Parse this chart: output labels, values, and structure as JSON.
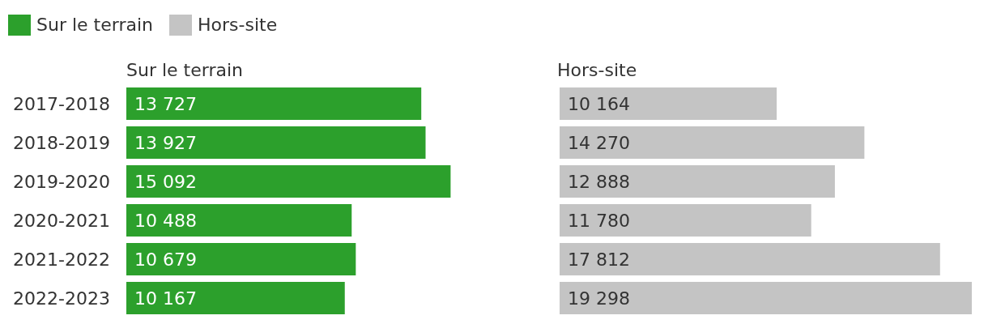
{
  "chart_data": [
    {
      "type": "bar",
      "orientation": "horizontal",
      "title": "Sur le terrain",
      "legend": "top left",
      "tick_labels": "y",
      "categories": [
        "2017-2018",
        "2018-2019",
        "2019-2020",
        "2020-2021",
        "2021-2022",
        "2022-2023"
      ],
      "series": [
        {
          "name": "Sur le terrain",
          "color": "#2ca02c",
          "values": [
            13727,
            13927,
            15092,
            10488,
            10679,
            10167
          ],
          "value_labels": [
            "13 727",
            "13 927",
            "15 092",
            "10 488",
            "10 679",
            "10 167"
          ]
        }
      ]
    },
    {
      "type": "bar",
      "orientation": "horizontal",
      "title": "Hors-site",
      "legend": "top left",
      "categories": [
        null,
        null,
        null,
        null,
        null,
        null
      ],
      "series": [
        {
          "name": "Hors-site",
          "color": "#c4c4c4",
          "values": [
            10164,
            14270,
            12888,
            11780,
            17812,
            19298
          ],
          "value_labels": [
            "10 164",
            "14 270",
            "12 888",
            "11 780",
            "17 812",
            "19 298"
          ]
        }
      ]
    }
  ]
}
